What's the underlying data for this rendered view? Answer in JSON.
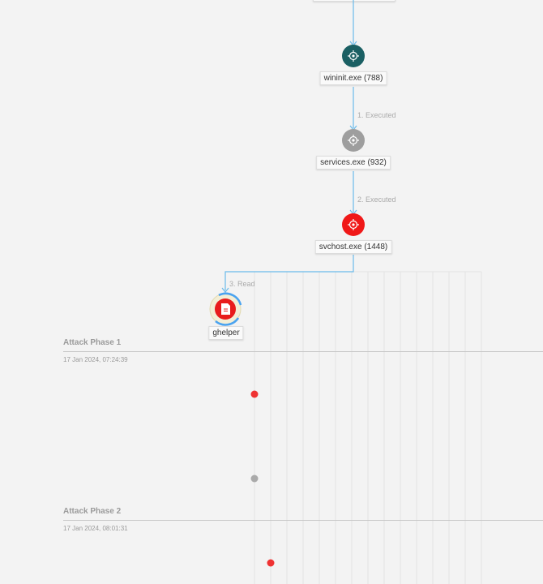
{
  "nodes": {
    "wininit": {
      "label": "wininit.exe (788)",
      "color": "#1a5f63",
      "icon": "process-icon"
    },
    "services": {
      "label": "services.exe (932)",
      "color": "#9e9e9e",
      "icon": "process-icon"
    },
    "svchost": {
      "label": "svchost.exe (1448)",
      "color": "#f01818",
      "icon": "process-icon"
    },
    "ghelper": {
      "label": "ghelper",
      "color": "#e81c1c",
      "icon": "file-icon"
    }
  },
  "edges": {
    "e1": "1. Executed",
    "e2": "2. Executed",
    "e3": "3. Read"
  },
  "phases": [
    {
      "title": "Attack Phase 1",
      "time": "17 Jan 2024, 07:24:39"
    },
    {
      "title": "Attack Phase 2",
      "time": "17 Jan 2024, 08:01:31"
    }
  ],
  "colors": {
    "edge": "#6bbbea",
    "event_red": "#ef3232",
    "event_gray": "#aaaaaa",
    "ring_blue": "#4aa3f0"
  }
}
